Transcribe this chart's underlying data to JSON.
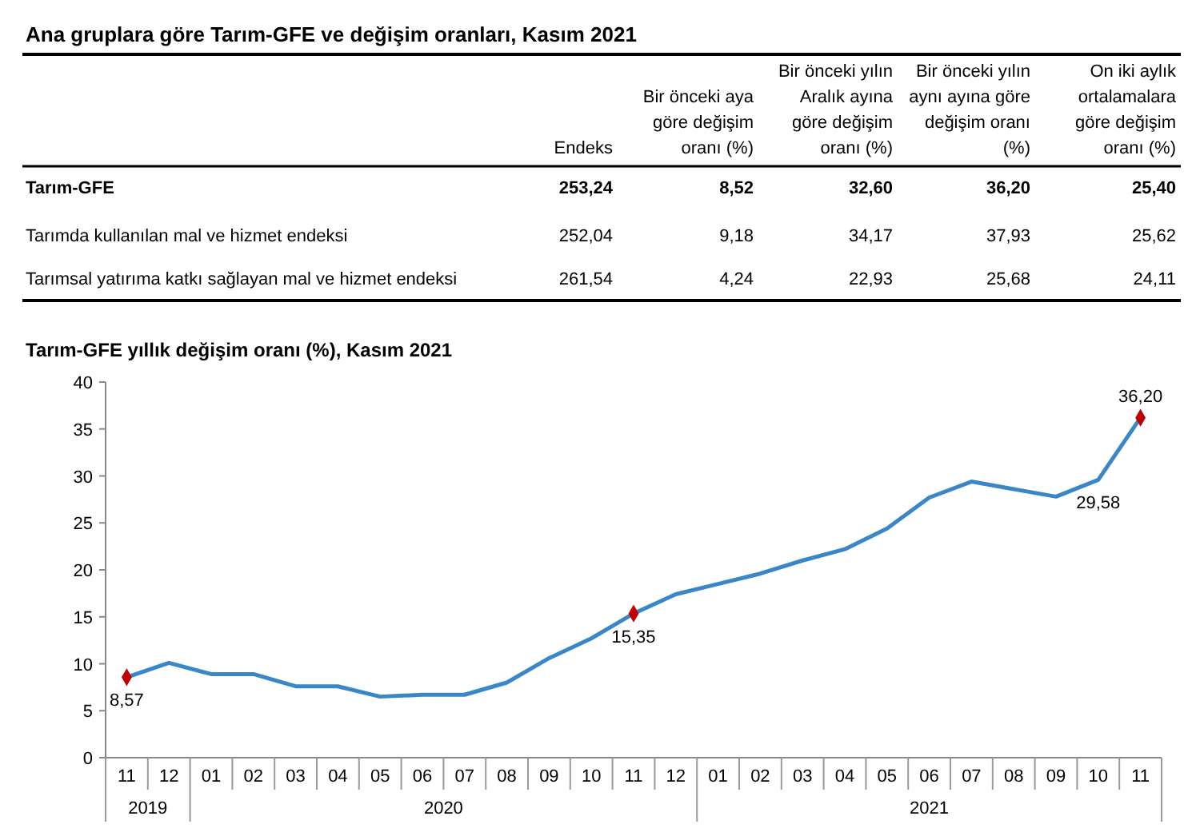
{
  "chart_data": [
    {
      "type": "other",
      "title": "Ana gruplara göre Tarım-GFE ve değişim oranları, Kasım 2021",
      "categories": [
        "Endeks",
        "Bir önceki aya göre değişim oranı (%)",
        "Bir önceki yılın Aralık ayına göre değişim oranı (%)",
        "Bir önceki yılın aynı ayına göre değişim oranı (%)",
        "On iki aylık ortalamalara göre değişim oranı (%)"
      ],
      "y_categories": [
        "Tarım-GFE",
        "Tarımda kullanılan mal ve hizmet endeksi",
        "Tarımsal yatırıma katkı sağlayan mal ve hizmet endeksi"
      ],
      "cell_labels": [
        [
          "253,24",
          "8,52",
          "32,60",
          "36,20",
          "25,40"
        ],
        [
          "252,04",
          "9,18",
          "34,17",
          "37,93",
          "25,62"
        ],
        [
          "261,54",
          "4,24",
          "22,93",
          "25,68",
          "24,11"
        ]
      ]
    },
    {
      "type": "line",
      "title": "Tarım-GFE yıllık değişim oranı (%), Kasım 2021",
      "categories": [
        "11",
        "12",
        "01",
        "02",
        "03",
        "04",
        "05",
        "06",
        "07",
        "08",
        "09",
        "10",
        "11",
        "12",
        "01",
        "02",
        "03",
        "04",
        "05",
        "06",
        "07",
        "08",
        "09",
        "10",
        "11"
      ],
      "ylim": [
        0,
        40
      ],
      "yticks": [
        0,
        5,
        10,
        15,
        20,
        25,
        30,
        35,
        40
      ],
      "annotations": [
        "2019",
        "2020",
        "2021"
      ],
      "series": [
        {
          "type": "line",
          "color": "#3a87c8",
          "marker": "none",
          "values": [
            8.57,
            10.1,
            8.9,
            8.9,
            7.6,
            7.6,
            6.5,
            6.7,
            6.7,
            8.0,
            10.6,
            12.7,
            15.35,
            17.4,
            18.5,
            19.6,
            21.0,
            22.2,
            24.4,
            27.7,
            29.4,
            28.6,
            27.8,
            29.58,
            36.2
          ],
          "value_labels": [
            "8,57",
            null,
            null,
            null,
            null,
            null,
            null,
            null,
            null,
            null,
            null,
            null,
            "15,35",
            null,
            null,
            null,
            null,
            null,
            null,
            null,
            null,
            null,
            null,
            "29,58",
            "36,20"
          ]
        },
        {
          "type": "scatter",
          "color": "#c00000",
          "marker": "diamond",
          "values": [
            8.57,
            null,
            null,
            null,
            null,
            null,
            null,
            null,
            null,
            null,
            null,
            null,
            15.35,
            null,
            null,
            null,
            null,
            null,
            null,
            null,
            null,
            null,
            null,
            null,
            36.2
          ]
        }
      ]
    }
  ]
}
